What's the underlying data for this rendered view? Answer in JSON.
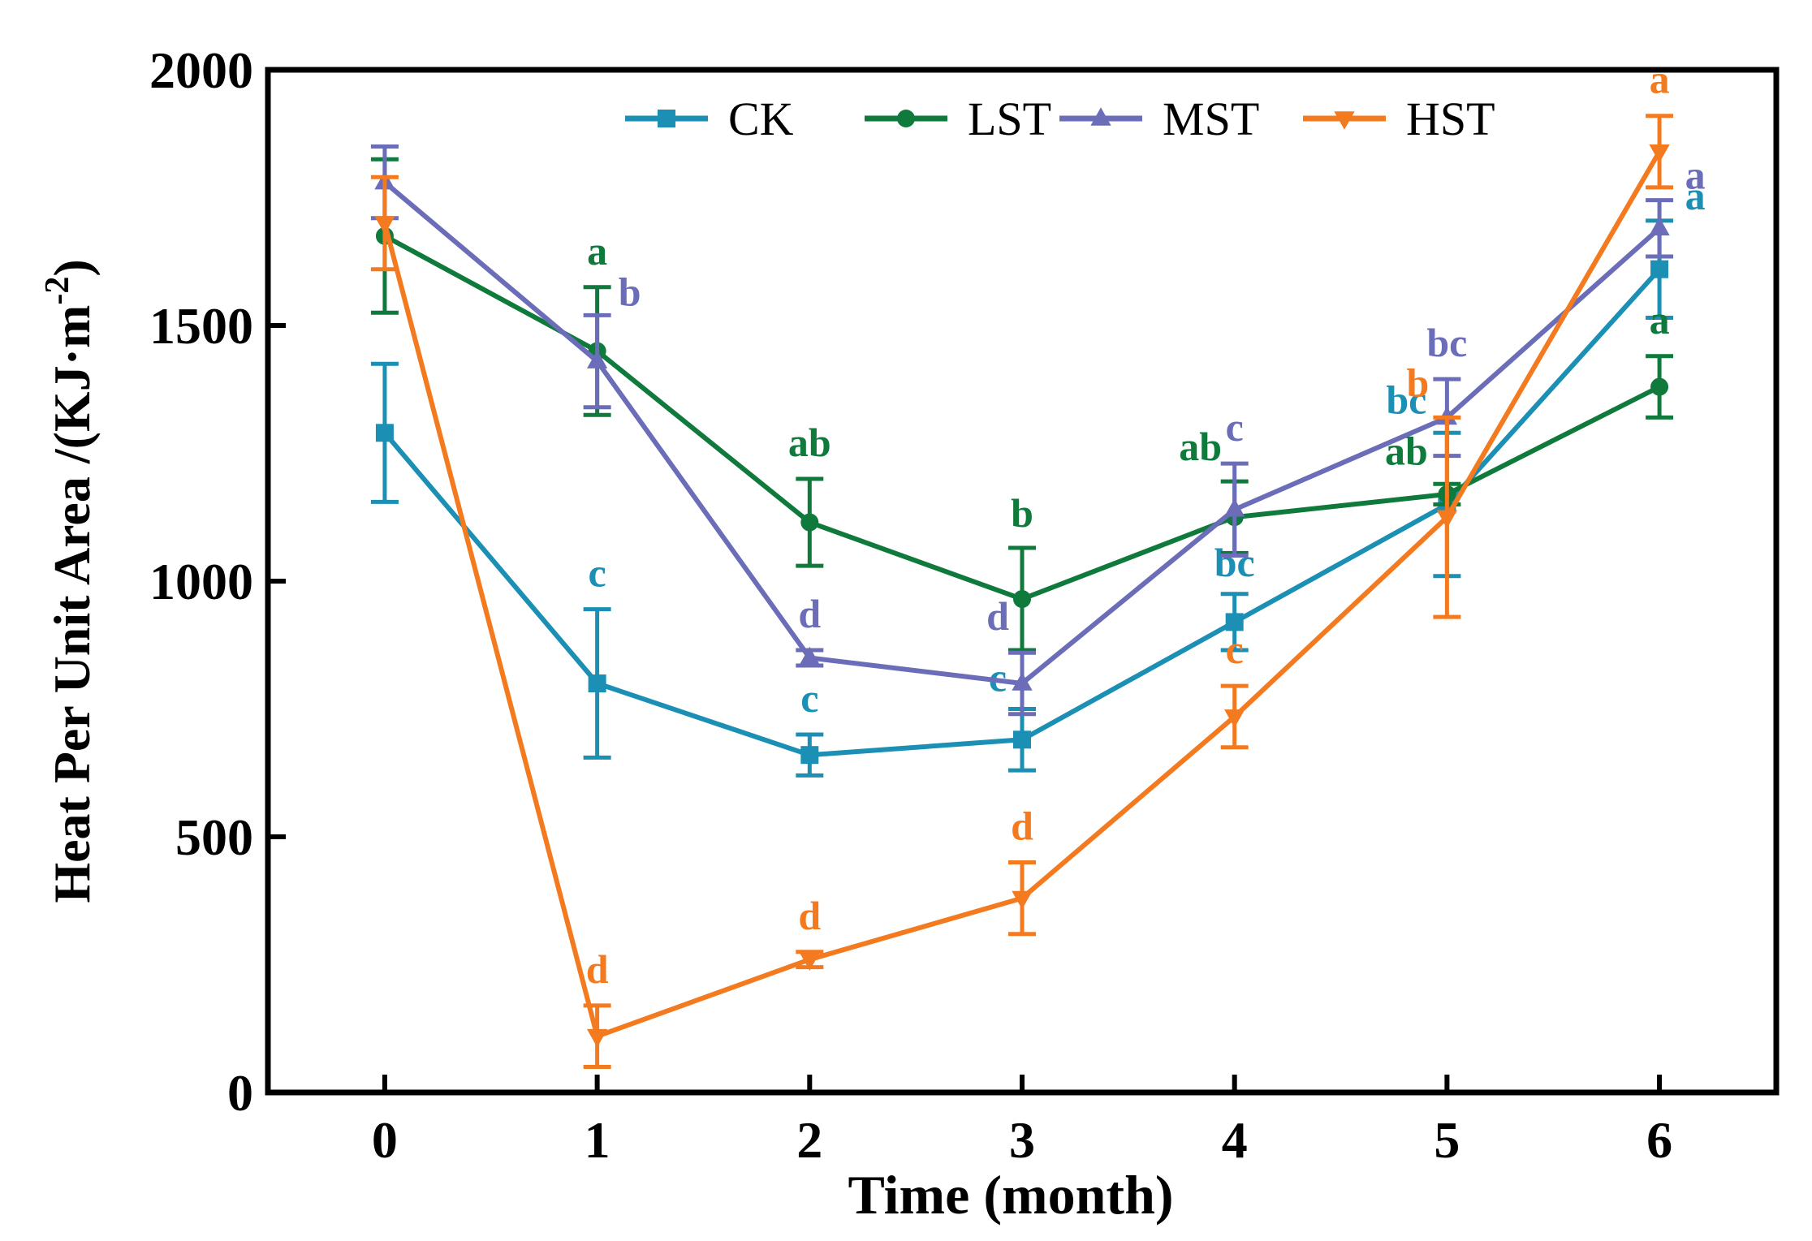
{
  "chart_data": {
    "type": "line",
    "title": "",
    "xlabel": "Time (month)",
    "ylabel": "Heat Per Unit Area /(KJ·m",
    "ylabel_superscript": "-2",
    "ylabel_close": ")",
    "x": [
      0,
      1,
      2,
      3,
      4,
      5,
      6
    ],
    "xlim": [
      -0.55,
      6.55
    ],
    "ylim": [
      0,
      2000
    ],
    "yticks": [
      0,
      500,
      1000,
      1500,
      2000
    ],
    "xticks": [
      0,
      1,
      2,
      3,
      4,
      5,
      6
    ],
    "grid": false,
    "legend_position": "top",
    "series": [
      {
        "name": "CK",
        "color": "#1b8fb4",
        "marker": "square",
        "values": [
          1290,
          800,
          660,
          690,
          920,
          1150,
          1610
        ],
        "errors": [
          135,
          145,
          40,
          60,
          55,
          140,
          95
        ],
        "letters": [
          "",
          "c",
          "c",
          "c",
          "bc",
          "bc",
          "a"
        ]
      },
      {
        "name": "LST",
        "color": "#0f7a3c",
        "marker": "circle",
        "values": [
          1675,
          1450,
          1115,
          965,
          1125,
          1170,
          1380
        ],
        "errors": [
          150,
          125,
          85,
          100,
          70,
          20,
          60
        ],
        "letters": [
          "",
          "a",
          "ab",
          "b",
          "ab",
          "ab",
          "a"
        ]
      },
      {
        "name": "MST",
        "color": "#6b6db8",
        "marker": "triangle-up",
        "values": [
          1780,
          1430,
          850,
          800,
          1140,
          1320,
          1690
        ],
        "errors": [
          70,
          90,
          15,
          60,
          90,
          75,
          55
        ],
        "letters": [
          "",
          "b",
          "d",
          "d",
          "c",
          "bc",
          "a"
        ]
      },
      {
        "name": "HST",
        "color": "#f47a20",
        "marker": "triangle-down",
        "values": [
          1700,
          110,
          260,
          380,
          735,
          1125,
          1840
        ],
        "errors": [
          90,
          60,
          15,
          70,
          60,
          195,
          70
        ],
        "letters": [
          "",
          "d",
          "d",
          "d",
          "c",
          "b",
          "a"
        ]
      }
    ]
  }
}
